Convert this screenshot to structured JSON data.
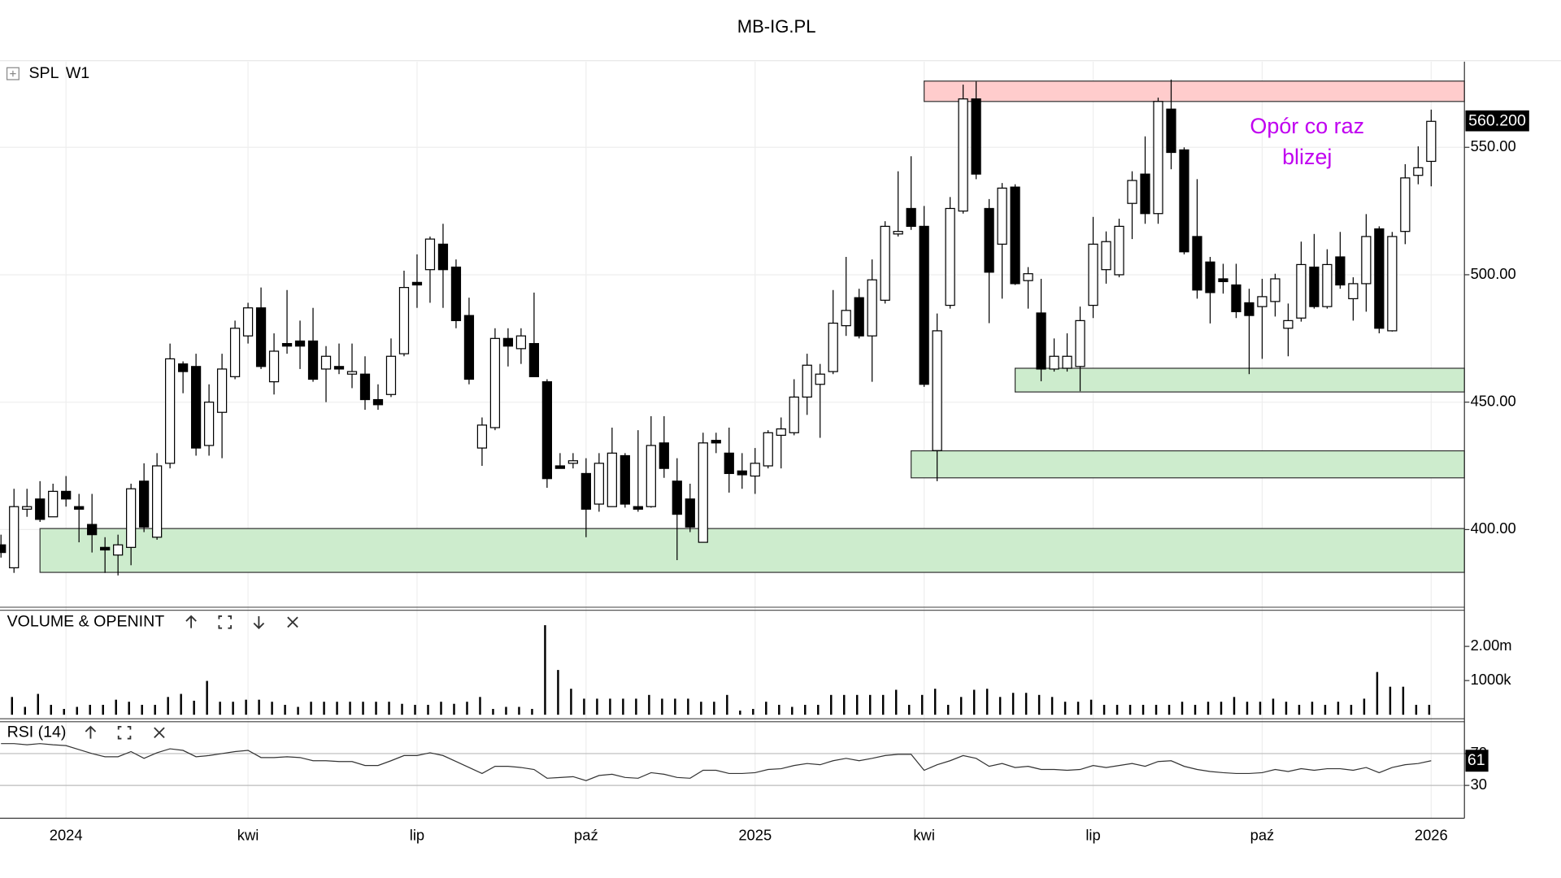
{
  "chart_data": [
    {
      "type": "candlestick",
      "title": "MB-IG.PL",
      "symbol": "SPL",
      "timeframe": "W1",
      "categories": [
        null,
        null,
        null,
        null,
        null,
        "2024",
        null,
        null,
        null,
        null,
        null,
        null,
        null,
        null,
        null,
        null,
        null,
        null,
        null,
        "kwi",
        null,
        null,
        null,
        null,
        null,
        null,
        null,
        null,
        null,
        null,
        null,
        null,
        "lip",
        null,
        null,
        null,
        null,
        null,
        null,
        null,
        null,
        null,
        null,
        null,
        null,
        "paź",
        null,
        null,
        null,
        null,
        null,
        null,
        null,
        null,
        null,
        null,
        null,
        null,
        "2025",
        null,
        null,
        null,
        null,
        null,
        null,
        null,
        null,
        null,
        null,
        null,
        null,
        "kwi",
        null,
        null,
        null,
        null,
        null,
        null,
        null,
        null,
        null,
        null,
        null,
        null,
        "lip",
        null,
        null,
        null,
        null,
        null,
        null,
        null,
        null,
        null,
        null,
        null,
        null,
        "paź",
        null,
        null,
        null,
        null,
        null,
        null,
        null,
        null,
        null,
        null,
        null,
        null,
        "2026"
      ],
      "open": [
        394,
        385,
        408,
        412,
        405,
        415,
        409,
        402,
        393,
        390,
        393,
        419,
        397,
        426,
        465,
        464,
        433,
        446,
        460,
        476,
        487,
        458,
        473,
        474,
        474,
        463,
        464,
        461,
        461,
        451,
        453,
        469,
        497,
        502,
        512,
        503,
        484,
        432,
        440,
        475,
        471,
        473,
        458,
        425,
        426,
        422,
        410,
        409,
        429,
        409,
        409,
        434,
        419,
        412,
        395,
        435,
        430,
        423,
        421,
        425,
        437,
        438,
        452,
        457,
        462,
        480,
        491,
        476,
        490,
        516,
        526,
        519,
        431,
        488,
        525,
        569,
        526,
        512,
        534.4,
        497.7,
        485,
        463,
        463.3,
        464,
        488,
        502,
        500,
        528,
        539.5,
        524,
        565,
        549,
        515,
        505,
        498.4,
        496,
        489,
        487.5,
        489.5,
        479,
        483,
        503,
        487.5,
        507,
        490.6,
        496.5,
        518,
        478,
        517,
        539,
        544.5
      ],
      "high": [
        398,
        416,
        416,
        419,
        418,
        421,
        414,
        414,
        397,
        398,
        418,
        426,
        430,
        473,
        466,
        469,
        457,
        469,
        482,
        489,
        495,
        477,
        494,
        482,
        487,
        472,
        473,
        473,
        468,
        457,
        475,
        501.6,
        508,
        515,
        520,
        506,
        491,
        444,
        479,
        479,
        479,
        493,
        459,
        430,
        430,
        428,
        430,
        440,
        430,
        439,
        444.5,
        444.5,
        428,
        418,
        438,
        438,
        440,
        430,
        432,
        439,
        444,
        459,
        469,
        465,
        494,
        507,
        494.5,
        506,
        521,
        540.6,
        546.5,
        527,
        484.8,
        530.5,
        574.6,
        575.8,
        529.7,
        536,
        535.5,
        503,
        498.4,
        475,
        477,
        487.5,
        522.7,
        517,
        522,
        540.6,
        554.3,
        569.5,
        576.6,
        550,
        537.5,
        507,
        504.3,
        504.3,
        494.5,
        498.4,
        500.4,
        488.7,
        513,
        516,
        510,
        516.8,
        499,
        523.8,
        519,
        516.8,
        543.4,
        550.4,
        564.8
      ],
      "low": [
        389,
        383,
        405,
        403,
        405,
        409,
        395,
        391,
        383,
        382,
        386,
        399,
        396,
        424,
        453.5,
        429,
        429,
        428,
        459,
        473,
        463,
        453,
        469,
        463,
        458,
        450,
        461,
        455.5,
        447,
        447,
        452,
        468,
        487,
        489,
        487,
        479,
        457,
        425,
        439,
        464,
        465,
        460,
        416.4,
        424,
        424,
        397,
        407,
        409,
        408.6,
        407,
        408.6,
        420.3,
        388,
        399,
        395,
        430,
        414.5,
        416,
        414,
        424,
        424,
        437,
        445,
        436,
        461,
        476,
        475,
        458,
        488.7,
        515,
        517.6,
        456,
        419,
        486.7,
        524,
        537.5,
        481,
        490.6,
        496,
        486.7,
        458.2,
        462,
        462,
        454.3,
        483,
        496.5,
        499,
        514,
        520,
        520,
        541.4,
        508,
        490.6,
        480.9,
        492.6,
        483,
        461,
        467,
        483.6,
        468,
        481.6,
        486.7,
        486.7,
        494.5,
        482,
        485.5,
        477,
        477.7,
        512,
        535.5,
        534.7
      ],
      "close": [
        391,
        409,
        409,
        404,
        415,
        412,
        408,
        398,
        392,
        394,
        416,
        401,
        425,
        467,
        462,
        432,
        450,
        463,
        479,
        487,
        464,
        470,
        472,
        472,
        459,
        468,
        463,
        462,
        451,
        449,
        468,
        495,
        496,
        514,
        502,
        482,
        459,
        441,
        475,
        472,
        476,
        460,
        420,
        424,
        427,
        408,
        426,
        430,
        410,
        408,
        433,
        424,
        406,
        401,
        434,
        434,
        422,
        421.5,
        426,
        438,
        439.5,
        452,
        464.5,
        461,
        481,
        486,
        476,
        498,
        519,
        517,
        519,
        457,
        478,
        526,
        569,
        539.5,
        501,
        534,
        496.5,
        500.4,
        463,
        468,
        468,
        482,
        512,
        513,
        519,
        537,
        524,
        568,
        548,
        509,
        494,
        493,
        497.3,
        485.5,
        484,
        491.4,
        498.4,
        482,
        504,
        487.5,
        504,
        496,
        496.5,
        515,
        479,
        515,
        538,
        542,
        560.2
      ],
      "close_label": "560.200",
      "up_color": "#ffffff",
      "down_color": "#000000",
      "ylim": [
        370.3,
        583.6
      ],
      "yticks": [
        {
          "value": 400,
          "label": "400.00"
        },
        {
          "value": 450,
          "label": "450.00"
        },
        {
          "value": 500,
          "label": "500.00"
        },
        {
          "value": 550,
          "label": "550.00"
        }
      ],
      "grid": true,
      "zones": [
        {
          "x_start": 71,
          "low": 568,
          "high": 576,
          "color": "#ffcccc"
        },
        {
          "x_start": 78,
          "low": 454,
          "high": 463.3,
          "color": "#cdeccd"
        },
        {
          "x_start": 70,
          "low": 420.3,
          "high": 430.9,
          "color": "#cdeccd"
        },
        {
          "x_start": 3,
          "low": 383.2,
          "high": 400.4,
          "color": "#cdeccd"
        }
      ],
      "annotation": {
        "lines": [
          "Opór co raz",
          "blizej"
        ],
        "color": "#c000f0"
      }
    },
    {
      "type": "bar",
      "title": "VOLUME & OPENINT",
      "color": "#000000",
      "values": [
        null,
        520000,
        230000,
        610000,
        290000,
        170000,
        230000,
        290000,
        290000,
        440000,
        380000,
        290000,
        290000,
        520000,
        610000,
        410000,
        990000,
        380000,
        380000,
        440000,
        440000,
        380000,
        290000,
        230000,
        380000,
        380000,
        380000,
        380000,
        380000,
        380000,
        380000,
        320000,
        290000,
        290000,
        380000,
        320000,
        380000,
        520000,
        170000,
        230000,
        230000,
        170000,
        2620000,
        1310000,
        760000,
        470000,
        470000,
        470000,
        470000,
        470000,
        580000,
        470000,
        470000,
        470000,
        380000,
        380000,
        580000,
        120000,
        170000,
        380000,
        290000,
        230000,
        290000,
        290000,
        580000,
        580000,
        580000,
        580000,
        580000,
        730000,
        290000,
        580000,
        760000,
        290000,
        520000,
        730000,
        760000,
        520000,
        640000,
        640000,
        580000,
        520000,
        380000,
        380000,
        440000,
        290000,
        290000,
        290000,
        290000,
        290000,
        290000,
        380000,
        290000,
        380000,
        380000,
        520000,
        380000,
        380000,
        470000,
        380000,
        290000,
        380000,
        290000,
        380000,
        290000,
        470000,
        1250000,
        820000,
        820000,
        290000,
        290000
      ],
      "ylim": [
        0,
        3000000
      ],
      "yticks": [
        {
          "value": 1000000,
          "label": "1000k"
        },
        {
          "value": 2000000,
          "label": "2.00m"
        }
      ]
    },
    {
      "type": "line",
      "title": "RSI (14)",
      "color": "#333333",
      "values": [
        82.5,
        82.5,
        81,
        82.5,
        81,
        80,
        75,
        70,
        66,
        66,
        72.5,
        64,
        71,
        76,
        74,
        66,
        67.5,
        70,
        72.5,
        74,
        65,
        65,
        66,
        65,
        61,
        61,
        60,
        60,
        55,
        55,
        61,
        67.5,
        67.5,
        71,
        67.5,
        60,
        52.5,
        45,
        54,
        54,
        52.5,
        50,
        39,
        40,
        41,
        36,
        42.5,
        44,
        40,
        39,
        46,
        44,
        40,
        39,
        49,
        49,
        45,
        45,
        46,
        50,
        51,
        55,
        57.5,
        56,
        61,
        64,
        61,
        64,
        67.5,
        69,
        69,
        49,
        56,
        61,
        67.5,
        64,
        54,
        57.5,
        52.5,
        54,
        50,
        50,
        49,
        50,
        55,
        52.5,
        55,
        57.5,
        54,
        60,
        61,
        54,
        50,
        47.5,
        46,
        45,
        45,
        46,
        50,
        47.5,
        51,
        49,
        51,
        51,
        49,
        52.5,
        46,
        52.5,
        56,
        57.5,
        61
      ],
      "value_label": "61",
      "ylim": [
        -11.25,
        108.75
      ],
      "yticks": [
        30,
        70
      ]
    }
  ]
}
